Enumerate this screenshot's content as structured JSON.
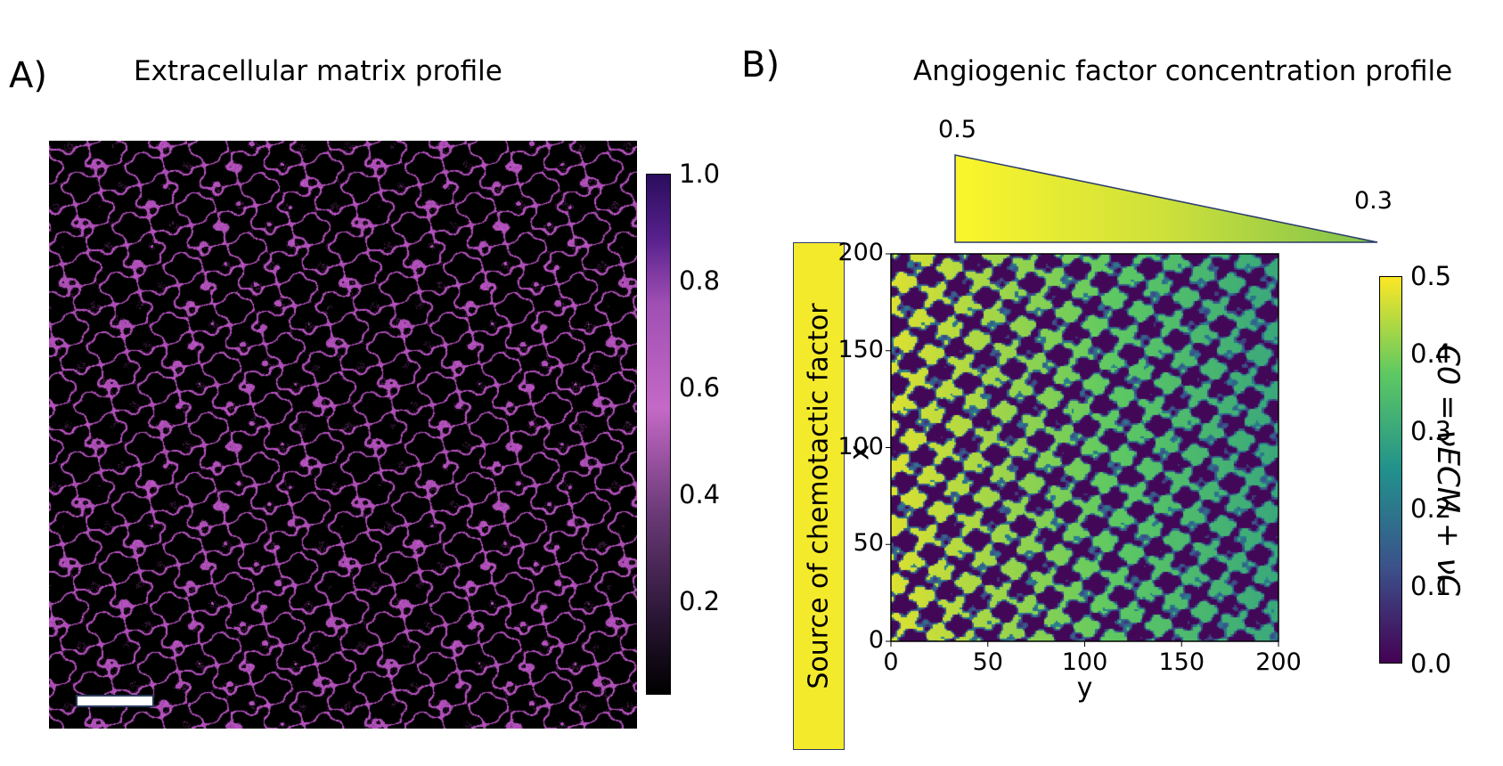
{
  "panel_a": {
    "letter": "A)",
    "title": "Extracellular matrix profile",
    "colorbar_ticks": [
      "1.0",
      "0.8",
      "0.6",
      "0.4",
      "0.2"
    ]
  },
  "panel_b": {
    "letter": "B)",
    "title": "Angiogenic factor concentration profile",
    "gradient_high": "0.5",
    "gradient_low": "0.3",
    "source_label": "Source of chemotactic factor",
    "colorbar_label": "C0 = νECM + νC",
    "colorbar_ticks": [
      "0.5",
      "0.4",
      "0.3",
      "0.2",
      "0.1",
      "0.0"
    ]
  },
  "chart_data": [
    {
      "type": "heatmap",
      "title": "Extracellular matrix profile",
      "colormap": "purple (black to magenta to dark purple)",
      "colorbar_range": [
        0,
        1.0
      ],
      "colorbar_ticks": [
        0.2,
        0.4,
        0.6,
        0.8,
        1.0
      ]
    },
    {
      "type": "heatmap",
      "title": "Angiogenic factor concentration profile",
      "xlabel": "y",
      "ylabel": "x",
      "xlim": [
        0,
        200
      ],
      "ylim": [
        0,
        200
      ],
      "x_ticks": [
        0,
        50,
        100,
        150,
        200
      ],
      "y_ticks": [
        0,
        50,
        100,
        150,
        200
      ],
      "colormap": "viridis",
      "colorbar_range": [
        0.0,
        0.5
      ],
      "colorbar_ticks": [
        0.0,
        0.1,
        0.2,
        0.3,
        0.4,
        0.5
      ],
      "gradient": {
        "start": 0.5,
        "end": 0.3
      }
    }
  ]
}
